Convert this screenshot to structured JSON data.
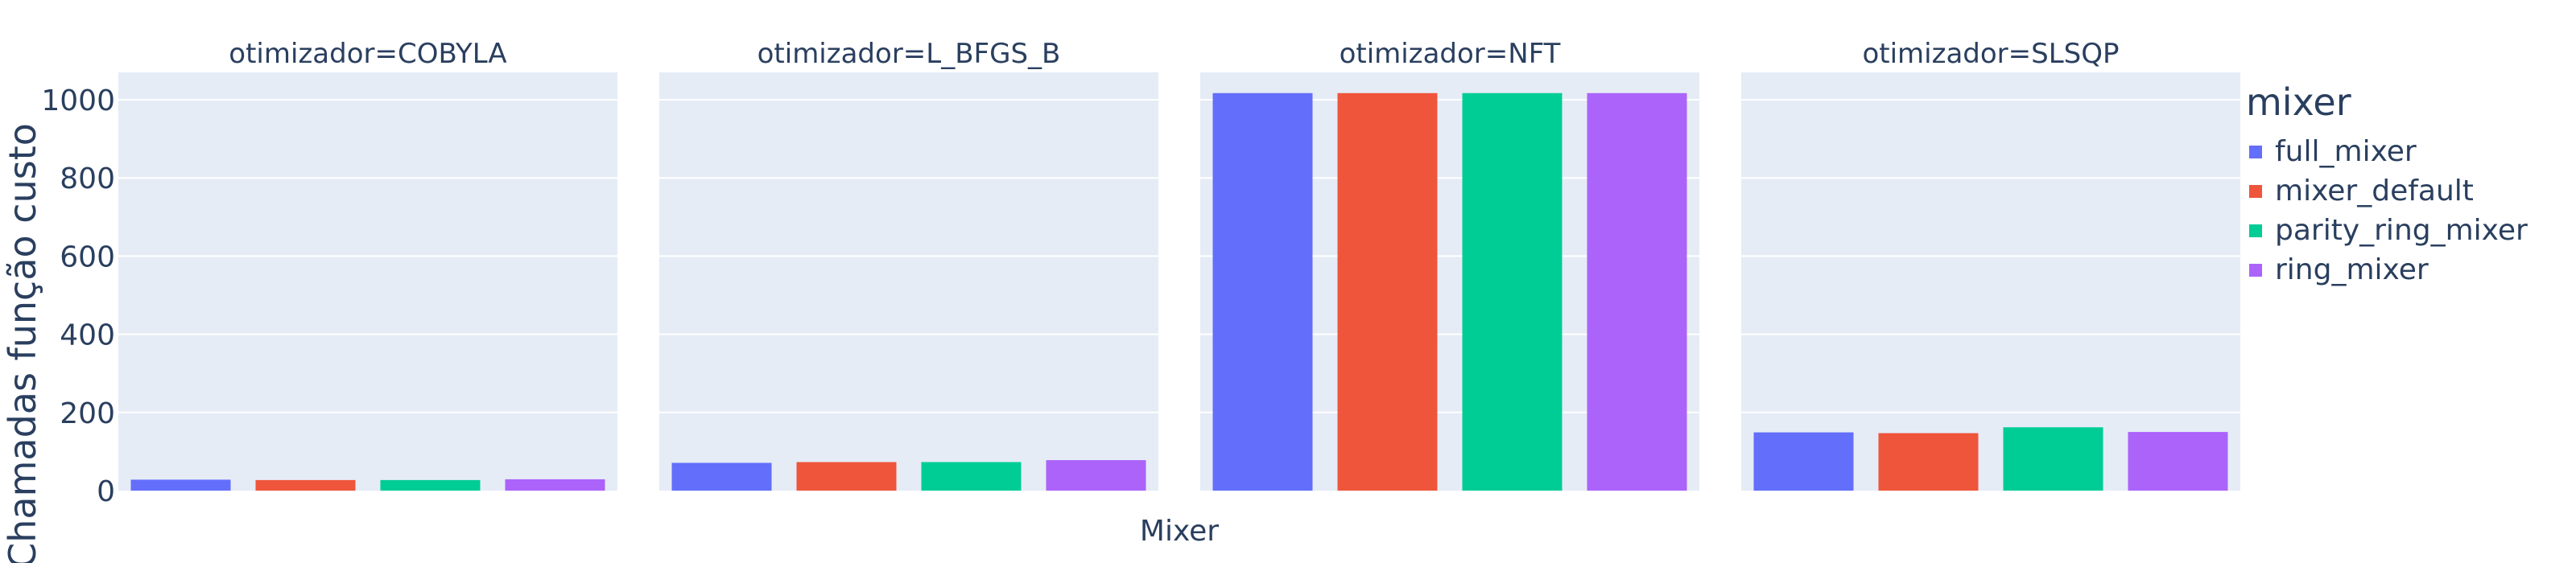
{
  "chart_data": {
    "type": "bar",
    "ylabel": "Chamadas função custo",
    "xlabel": "Mixer",
    "ylim": [
      0,
      1070
    ],
    "yticks": [
      0,
      200,
      400,
      600,
      800,
      1000
    ],
    "grid": true,
    "legend_title": "mixer",
    "legend_position": "right",
    "categories": [
      "full_mixer",
      "mixer_default",
      "parity_ring_mixer",
      "ring_mixer"
    ],
    "colors": [
      "#636efa",
      "#ef553b",
      "#00cc96",
      "#ab63fa"
    ],
    "facets": [
      {
        "title": "otimizador=COBYLA",
        "values": [
          28,
          27,
          27,
          29
        ]
      },
      {
        "title": "otimizador=L_BFGS_B",
        "values": [
          71,
          73,
          73,
          78
        ]
      },
      {
        "title": "otimizador=NFT",
        "values": [
          1017,
          1017,
          1017,
          1017
        ]
      },
      {
        "title": "otimizador=SLSQP",
        "values": [
          149,
          147,
          162,
          150
        ]
      }
    ]
  }
}
